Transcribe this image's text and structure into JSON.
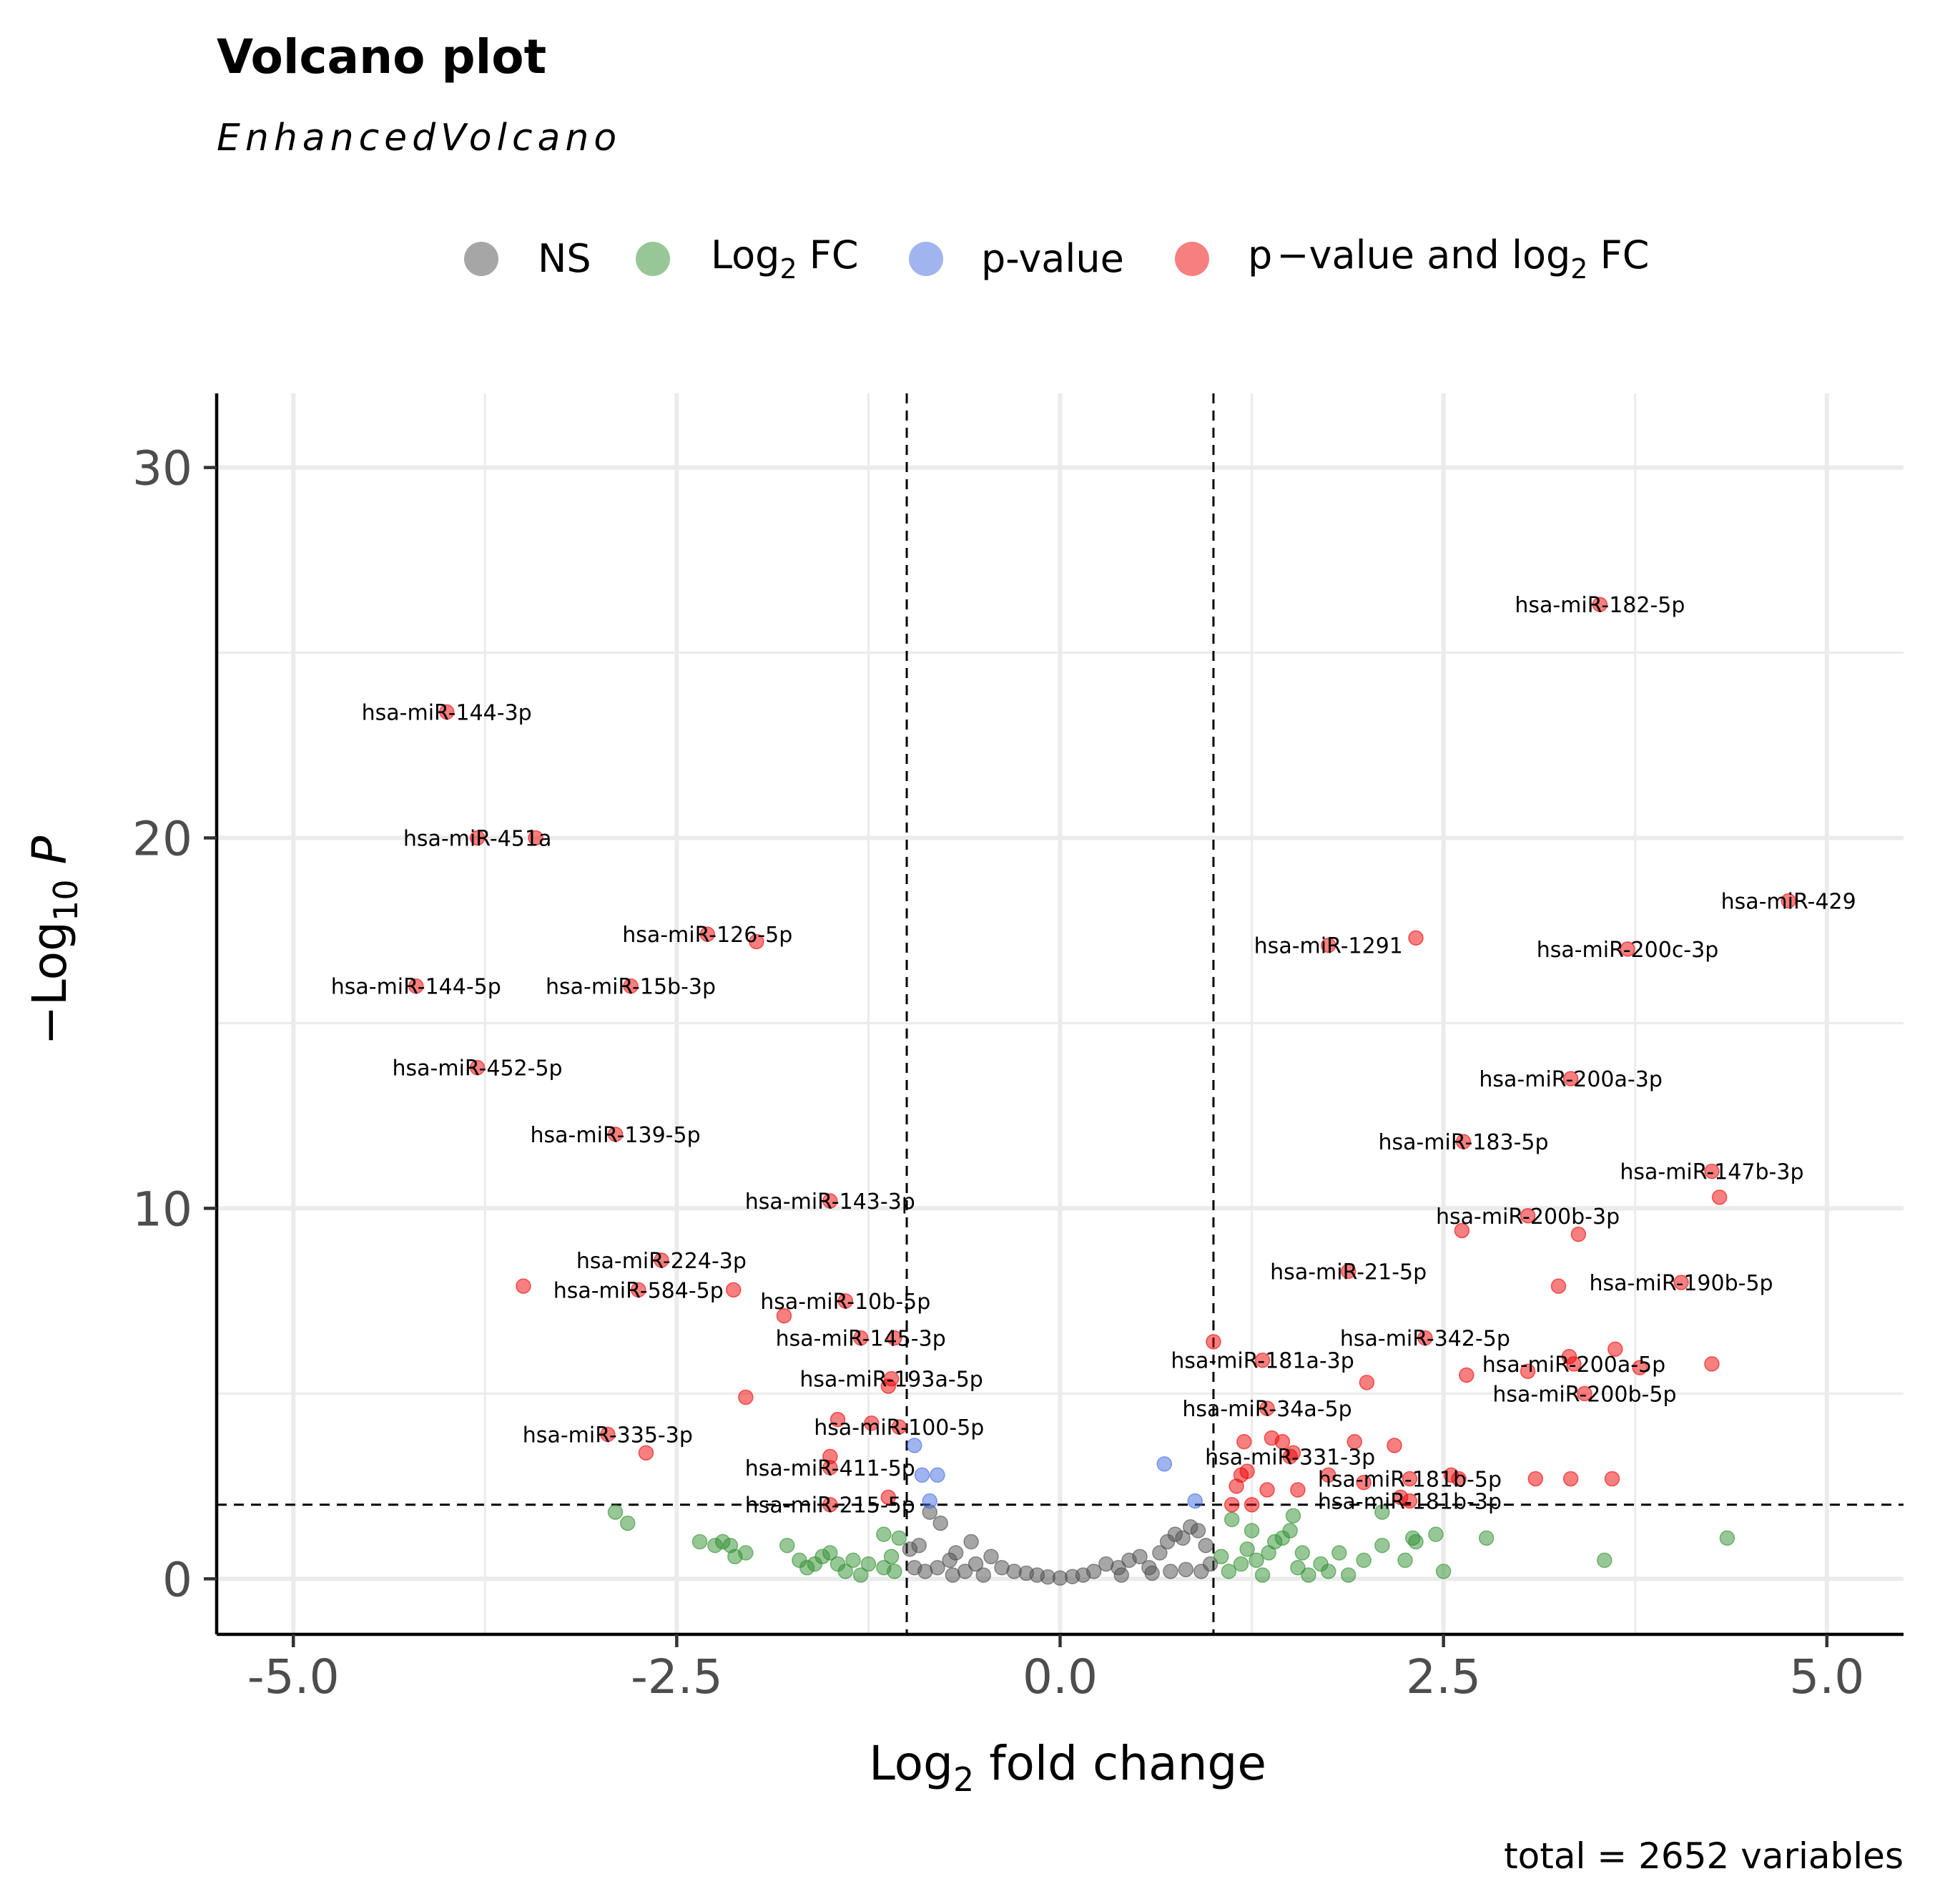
{
  "chart_data": {
    "type": "scatter",
    "title": "Volcano plot",
    "subtitle": "EnhancedVolcano",
    "caption": "total = 2652 variables",
    "xlabel": "Log2 fold change",
    "ylabel": "-Log10 P",
    "xlim": [
      -5.5,
      5.5
    ],
    "ylim": [
      -1.5,
      32
    ],
    "xticks": [
      "-5.0",
      "-2.5",
      "0.0",
      "2.5",
      "5.0"
    ],
    "xtick_values": [
      -5,
      -2.5,
      0,
      2.5,
      5
    ],
    "yticks": [
      "0",
      "10",
      "20",
      "30"
    ],
    "ytick_values": [
      0,
      10,
      20,
      30
    ],
    "fc_cutoff": [
      -1,
      1
    ],
    "p_cutoff_log": 2,
    "grid": true,
    "legend": {
      "position": "top",
      "entries": [
        {
          "key": "NS",
          "label": "NS",
          "color": "#4d4d4d"
        },
        {
          "key": "FC",
          "label": "Log2 FC",
          "color": "#2f8f2f"
        },
        {
          "key": "P",
          "label": "p-value",
          "color": "#4169e1"
        },
        {
          "key": "FC_P",
          "label": "p−value and log2 FC",
          "color": "#ef0000"
        }
      ]
    },
    "labeled_points": [
      {
        "label": "hsa-miR-182-5p",
        "x": 3.52,
        "y": 26.3
      },
      {
        "label": "hsa-miR-144-3p",
        "x": -4.0,
        "y": 23.4
      },
      {
        "label": "hsa-miR-451a",
        "x": -3.8,
        "y": 20.0
      },
      {
        "label": "hsa-miR-429",
        "x": 4.75,
        "y": 18.3
      },
      {
        "label": "hsa-miR-126-5p",
        "x": -2.3,
        "y": 17.4
      },
      {
        "label": "hsa-miR-1291",
        "x": 1.75,
        "y": 17.1
      },
      {
        "label": "hsa-miR-200c-3p",
        "x": 3.7,
        "y": 17.0
      },
      {
        "label": "hsa-miR-144-5p",
        "x": -4.2,
        "y": 16.0
      },
      {
        "label": "hsa-miR-15b-3p",
        "x": -2.8,
        "y": 16.0
      },
      {
        "label": "hsa-miR-452-5p",
        "x": -3.8,
        "y": 13.8
      },
      {
        "label": "hsa-miR-200a-3p",
        "x": 3.33,
        "y": 13.5
      },
      {
        "label": "hsa-miR-139-5p",
        "x": -2.9,
        "y": 12.0
      },
      {
        "label": "hsa-miR-183-5p",
        "x": 2.63,
        "y": 11.8
      },
      {
        "label": "hsa-miR-147b-3p",
        "x": 4.25,
        "y": 11.0
      },
      {
        "label": "hsa-miR-143-3p",
        "x": -1.5,
        "y": 10.2
      },
      {
        "label": "hsa-miR-200b-3p",
        "x": 3.05,
        "y": 9.8
      },
      {
        "label": "hsa-miR-224-3p",
        "x": -2.6,
        "y": 8.6
      },
      {
        "label": "hsa-miR-21-5p",
        "x": 1.88,
        "y": 8.3
      },
      {
        "label": "hsa-miR-584-5p",
        "x": -2.75,
        "y": 7.8
      },
      {
        "label": "hsa-miR-190b-5p",
        "x": 4.05,
        "y": 8.0
      },
      {
        "label": "hsa-miR-10b-5p",
        "x": -1.4,
        "y": 7.5
      },
      {
        "label": "hsa-miR-145-3p",
        "x": -1.3,
        "y": 6.5
      },
      {
        "label": "hsa-miR-342-5p",
        "x": 2.38,
        "y": 6.5
      },
      {
        "label": "hsa-miR-181a-3p",
        "x": 1.32,
        "y": 5.9
      },
      {
        "label": "hsa-miR-200a-5p",
        "x": 3.35,
        "y": 5.8
      },
      {
        "label": "hsa-miR-193a-5p",
        "x": -1.1,
        "y": 5.4
      },
      {
        "label": "hsa-miR-200b-5p",
        "x": 3.42,
        "y": 5.0
      },
      {
        "label": "hsa-miR-34a-5p",
        "x": 1.35,
        "y": 4.6
      },
      {
        "label": "hsa-miR-100-5p",
        "x": -1.05,
        "y": 4.1
      },
      {
        "label": "hsa-miR-335-3p",
        "x": -2.95,
        "y": 3.9
      },
      {
        "label": "hsa-miR-331-3p",
        "x": 1.5,
        "y": 3.3
      },
      {
        "label": "hsa-miR-411-5p",
        "x": -1.5,
        "y": 3.0
      },
      {
        "label": "hsa-miR-181b-5p",
        "x": 2.28,
        "y": 2.7
      },
      {
        "label": "hsa-miR-215-5p",
        "x": -1.5,
        "y": 2.0
      },
      {
        "label": "hsa-miR-181b-3p",
        "x": 2.28,
        "y": 2.1
      }
    ],
    "unlabeled_sig_points": [
      {
        "x": -3.5,
        "y": 7.9
      },
      {
        "x": -3.42,
        "y": 20.0
      },
      {
        "x": -1.98,
        "y": 17.2
      },
      {
        "x": -2.13,
        "y": 7.8
      },
      {
        "x": -1.8,
        "y": 7.1
      },
      {
        "x": -2.05,
        "y": 4.9
      },
      {
        "x": -2.7,
        "y": 3.4
      },
      {
        "x": -1.45,
        "y": 4.3
      },
      {
        "x": -1.23,
        "y": 4.2
      },
      {
        "x": -1.12,
        "y": 5.2
      },
      {
        "x": -1.08,
        "y": 6.5
      },
      {
        "x": -1.5,
        "y": 3.3
      },
      {
        "x": -1.12,
        "y": 2.2
      },
      {
        "x": 2.32,
        "y": 17.3
      },
      {
        "x": 4.3,
        "y": 10.3
      },
      {
        "x": 2.62,
        "y": 9.4
      },
      {
        "x": 3.38,
        "y": 9.3
      },
      {
        "x": 3.25,
        "y": 7.9
      },
      {
        "x": 3.62,
        "y": 6.2
      },
      {
        "x": 3.78,
        "y": 5.7
      },
      {
        "x": 4.25,
        "y": 5.8
      },
      {
        "x": 3.05,
        "y": 5.6
      },
      {
        "x": 3.32,
        "y": 6.0
      },
      {
        "x": 2.65,
        "y": 5.5
      },
      {
        "x": 1.0,
        "y": 6.4
      },
      {
        "x": 2.0,
        "y": 5.3
      },
      {
        "x": 1.38,
        "y": 3.8
      },
      {
        "x": 1.45,
        "y": 3.7
      },
      {
        "x": 1.2,
        "y": 3.7
      },
      {
        "x": 1.92,
        "y": 3.7
      },
      {
        "x": 2.18,
        "y": 3.6
      },
      {
        "x": 1.52,
        "y": 3.4
      },
      {
        "x": 1.22,
        "y": 2.9
      },
      {
        "x": 1.18,
        "y": 2.8
      },
      {
        "x": 1.75,
        "y": 2.8
      },
      {
        "x": 1.98,
        "y": 2.6
      },
      {
        "x": 1.35,
        "y": 2.4
      },
      {
        "x": 1.55,
        "y": 2.4
      },
      {
        "x": 1.15,
        "y": 2.5
      },
      {
        "x": 1.12,
        "y": 2.0
      },
      {
        "x": 1.25,
        "y": 2.0
      },
      {
        "x": 2.55,
        "y": 2.8
      },
      {
        "x": 2.6,
        "y": 2.7
      },
      {
        "x": 3.1,
        "y": 2.7
      },
      {
        "x": 3.33,
        "y": 2.7
      },
      {
        "x": 3.6,
        "y": 2.7
      },
      {
        "x": 2.22,
        "y": 2.2
      }
    ],
    "p_only_points": [
      {
        "x": -0.95,
        "y": 3.6
      },
      {
        "x": -0.8,
        "y": 2.8
      },
      {
        "x": -0.9,
        "y": 2.8
      },
      {
        "x": -0.85,
        "y": 2.1
      },
      {
        "x": 0.68,
        "y": 3.1
      },
      {
        "x": 0.88,
        "y": 2.1
      }
    ],
    "fc_only_points": [
      {
        "x": -2.9,
        "y": 1.8
      },
      {
        "x": -2.82,
        "y": 1.5
      },
      {
        "x": -2.35,
        "y": 1.0
      },
      {
        "x": -2.25,
        "y": 0.9
      },
      {
        "x": -2.2,
        "y": 1.0
      },
      {
        "x": -2.15,
        "y": 0.9
      },
      {
        "x": -2.12,
        "y": 0.6
      },
      {
        "x": -2.05,
        "y": 0.7
      },
      {
        "x": -1.78,
        "y": 0.9
      },
      {
        "x": -1.7,
        "y": 0.5
      },
      {
        "x": -1.65,
        "y": 0.3
      },
      {
        "x": -1.6,
        "y": 0.4
      },
      {
        "x": -1.55,
        "y": 0.6
      },
      {
        "x": -1.5,
        "y": 0.7
      },
      {
        "x": -1.45,
        "y": 0.4
      },
      {
        "x": -1.4,
        "y": 0.2
      },
      {
        "x": -1.35,
        "y": 0.5
      },
      {
        "x": -1.3,
        "y": 0.1
      },
      {
        "x": -1.25,
        "y": 0.4
      },
      {
        "x": -1.15,
        "y": 1.2
      },
      {
        "x": -1.1,
        "y": 0.6
      },
      {
        "x": -1.05,
        "y": 1.1
      },
      {
        "x": -1.15,
        "y": 0.3
      },
      {
        "x": -1.08,
        "y": 0.2
      },
      {
        "x": 1.05,
        "y": 0.6
      },
      {
        "x": 1.1,
        "y": 0.2
      },
      {
        "x": 1.12,
        "y": 1.6
      },
      {
        "x": 1.18,
        "y": 0.4
      },
      {
        "x": 1.22,
        "y": 0.8
      },
      {
        "x": 1.25,
        "y": 1.3
      },
      {
        "x": 1.28,
        "y": 0.5
      },
      {
        "x": 1.32,
        "y": 0.1
      },
      {
        "x": 1.36,
        "y": 0.7
      },
      {
        "x": 1.4,
        "y": 1.0
      },
      {
        "x": 1.45,
        "y": 1.1
      },
      {
        "x": 1.5,
        "y": 1.3
      },
      {
        "x": 1.52,
        "y": 1.7
      },
      {
        "x": 1.55,
        "y": 0.3
      },
      {
        "x": 1.58,
        "y": 0.7
      },
      {
        "x": 1.62,
        "y": 0.1
      },
      {
        "x": 1.7,
        "y": 0.4
      },
      {
        "x": 1.75,
        "y": 0.2
      },
      {
        "x": 1.82,
        "y": 0.7
      },
      {
        "x": 1.88,
        "y": 0.1
      },
      {
        "x": 1.98,
        "y": 0.5
      },
      {
        "x": 2.1,
        "y": 1.8
      },
      {
        "x": 2.1,
        "y": 0.9
      },
      {
        "x": 2.25,
        "y": 0.5
      },
      {
        "x": 2.3,
        "y": 1.1
      },
      {
        "x": 2.32,
        "y": 1.0
      },
      {
        "x": 2.45,
        "y": 1.2
      },
      {
        "x": 2.5,
        "y": 0.2
      },
      {
        "x": 2.78,
        "y": 1.1
      },
      {
        "x": 3.55,
        "y": 0.5
      },
      {
        "x": 4.35,
        "y": 1.1
      }
    ],
    "ns_points": [
      {
        "x": -0.98,
        "y": 0.8
      },
      {
        "x": -0.92,
        "y": 0.9
      },
      {
        "x": -0.85,
        "y": 1.8
      },
      {
        "x": -0.78,
        "y": 1.5
      },
      {
        "x": -0.72,
        "y": 0.5
      },
      {
        "x": -0.68,
        "y": 0.7
      },
      {
        "x": -0.58,
        "y": 1.0
      },
      {
        "x": -0.55,
        "y": 0.4
      },
      {
        "x": -0.45,
        "y": 0.6
      },
      {
        "x": -0.38,
        "y": 0.3
      },
      {
        "x": -0.3,
        "y": 0.2
      },
      {
        "x": -0.22,
        "y": 0.15
      },
      {
        "x": -0.15,
        "y": 0.1
      },
      {
        "x": -0.08,
        "y": 0.05
      },
      {
        "x": 0.0,
        "y": 0.02
      },
      {
        "x": 0.08,
        "y": 0.06
      },
      {
        "x": 0.15,
        "y": 0.1
      },
      {
        "x": 0.22,
        "y": 0.2
      },
      {
        "x": 0.3,
        "y": 0.4
      },
      {
        "x": 0.38,
        "y": 0.3
      },
      {
        "x": 0.45,
        "y": 0.5
      },
      {
        "x": 0.52,
        "y": 0.6
      },
      {
        "x": 0.58,
        "y": 0.3
      },
      {
        "x": 0.65,
        "y": 0.7
      },
      {
        "x": 0.7,
        "y": 1.0
      },
      {
        "x": 0.75,
        "y": 1.2
      },
      {
        "x": 0.8,
        "y": 1.1
      },
      {
        "x": 0.85,
        "y": 1.4
      },
      {
        "x": 0.9,
        "y": 1.3
      },
      {
        "x": 0.95,
        "y": 0.9
      },
      {
        "x": 0.98,
        "y": 0.4
      },
      {
        "x": -0.95,
        "y": 0.3
      },
      {
        "x": -0.88,
        "y": 0.2
      },
      {
        "x": -0.8,
        "y": 0.3
      },
      {
        "x": -0.62,
        "y": 0.2
      },
      {
        "x": -0.5,
        "y": 0.1
      },
      {
        "x": 0.4,
        "y": 0.1
      },
      {
        "x": 0.6,
        "y": 0.15
      },
      {
        "x": 0.82,
        "y": 0.25
      },
      {
        "x": 0.92,
        "y": 0.2
      },
      {
        "x": -0.7,
        "y": 0.1
      },
      {
        "x": 0.72,
        "y": 0.2
      }
    ]
  }
}
